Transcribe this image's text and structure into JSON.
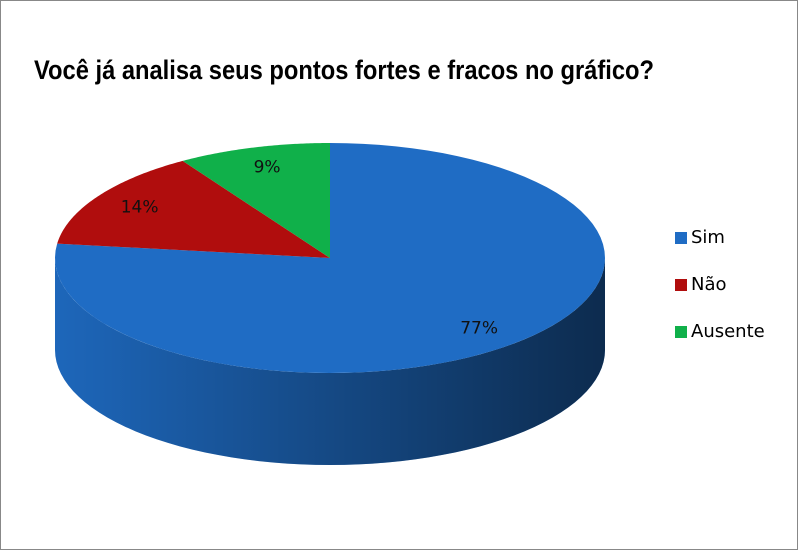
{
  "chart_data": {
    "type": "pie",
    "title": "Você já analisa seus pontos fortes e fracos no gráfico?",
    "categories": [
      "Sim",
      "Não",
      "Ausente"
    ],
    "values": [
      77,
      14,
      9
    ],
    "value_labels": [
      "77%",
      "14%",
      "9%"
    ],
    "colors": [
      "#1f6cc4",
      "#b00d0d",
      "#10b04a"
    ],
    "legend": "right"
  }
}
